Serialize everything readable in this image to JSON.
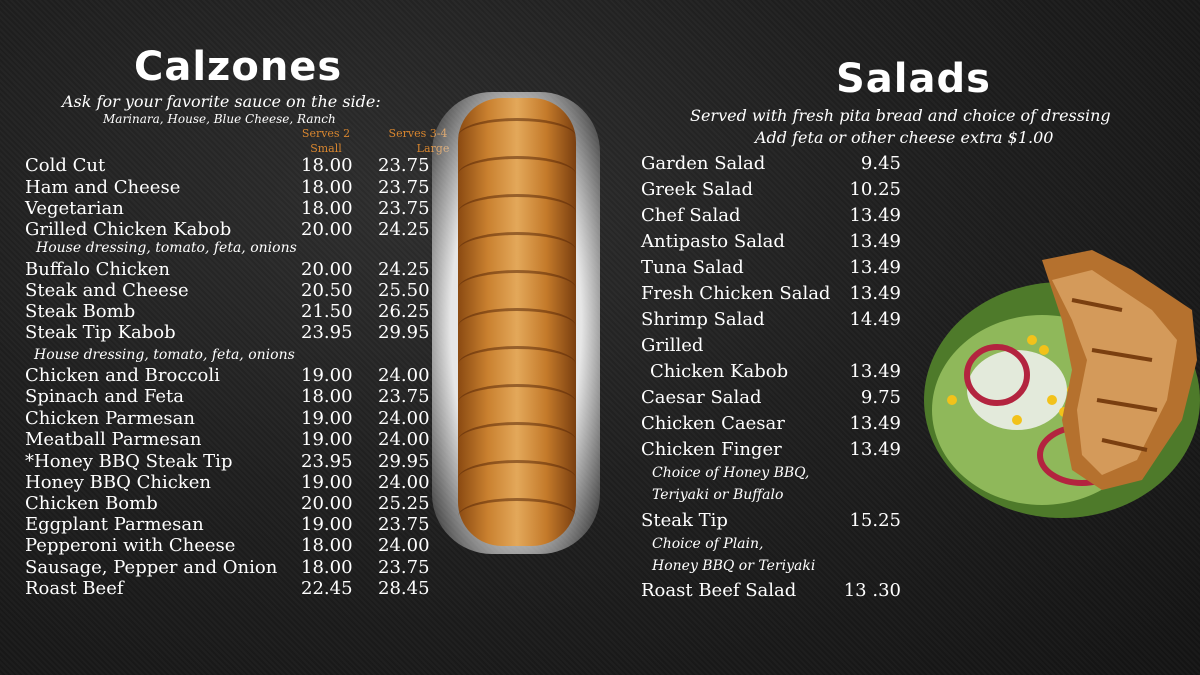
{
  "calzones": {
    "title": "Calzones",
    "subtitle": "Ask for your favorite sauce on the side:",
    "sauces": "Marinara, House, Blue Cheese, Ranch",
    "col1_serves": "Serves 2",
    "col1_size": "Small",
    "col2_serves": "Serves 3-4",
    "col2_size": "Large",
    "items": [
      {
        "name": "Cold Cut",
        "small": "18.00",
        "large": "23.75"
      },
      {
        "name": "Ham and Cheese",
        "small": "18.00",
        "large": "23.75"
      },
      {
        "name": "Vegetarian",
        "small": "18.00",
        "large": "23.75"
      },
      {
        "name": "Grilled Chicken Kabob",
        "small": "20.00",
        "large": "24.25"
      },
      {
        "name": "Buffalo Chicken",
        "small": "20.00",
        "large": "24.25"
      },
      {
        "name": "Steak and Cheese",
        "small": "20.50",
        "large": "25.50"
      },
      {
        "name": "Steak Bomb",
        "small": "21.50",
        "large": "26.25"
      },
      {
        "name": "Steak Tip Kabob",
        "small": "23.95",
        "large": "29.95"
      },
      {
        "name": "Chicken and Broccoli",
        "small": "19.00",
        "large": "24.00"
      },
      {
        "name": "Spinach and Feta",
        "small": "18.00",
        "large": "23.75"
      },
      {
        "name": "Chicken Parmesan",
        "small": "19.00",
        "large": "24.00"
      },
      {
        "name": "Meatball Parmesan",
        "small": "19.00",
        "large": "24.00"
      },
      {
        "name": "*Honey BBQ Steak Tip",
        "small": "23.95",
        "large": "29.95"
      },
      {
        "name": "Honey BBQ Chicken",
        "small": "19.00",
        "large": "24.00"
      },
      {
        "name": "Chicken Bomb",
        "small": "20.00",
        "large": "25.25"
      },
      {
        "name": "Eggplant Parmesan",
        "small": "19.00",
        "large": "23.75"
      },
      {
        "name": "Pepperoni with Cheese",
        "small": "18.00",
        "large": "24.00"
      },
      {
        "name": "Sausage, Pepper and Onion",
        "small": "18.00",
        "large": "23.75"
      },
      {
        "name": "Roast Beef",
        "small": "22.45",
        "large": "28.45"
      }
    ],
    "note_kabob": "House dressing, tomato, feta, onions",
    "note_steak_tip": "House dressing, tomato, feta, onions"
  },
  "salads": {
    "title": "Salads",
    "subtitle": "Served with fresh pita bread and choice of dressing",
    "subtitle2": "Add feta or other cheese extra $1.00",
    "items": [
      {
        "name": "Garden Salad",
        "price": "9.45"
      },
      {
        "name": "Greek Salad",
        "price": "10.25"
      },
      {
        "name": "Chef Salad",
        "price": "13.49"
      },
      {
        "name": "Antipasto Salad",
        "price": "13.49"
      },
      {
        "name": "Tuna Salad",
        "price": "13.49"
      },
      {
        "name": "Fresh Chicken Salad",
        "price": "13.49"
      },
      {
        "name": "Shrimp Salad",
        "price": "14.49"
      },
      {
        "name": "Grilled",
        "price": ""
      },
      {
        "name": "Chicken Kabob",
        "price": "13.49"
      },
      {
        "name": "Caesar Salad",
        "price": "9.75"
      },
      {
        "name": "Chicken Caesar",
        "price": "13.49"
      },
      {
        "name": "Chicken Finger",
        "price": "13.49"
      },
      {
        "name": "Steak Tip",
        "price": "15.25"
      },
      {
        "name": "Roast Beef Salad",
        "price": "13 .30"
      }
    ],
    "note_finger_1": "Choice of Honey BBQ,",
    "note_finger_2": "Teriyaki or Buffalo",
    "note_steak_1": "Choice of Plain,",
    "note_steak_2": "Honey BBQ or Teriyaki"
  },
  "colors": {
    "accent": "#d8862f",
    "background": "#1f1f1f",
    "text": "#ffffff"
  }
}
